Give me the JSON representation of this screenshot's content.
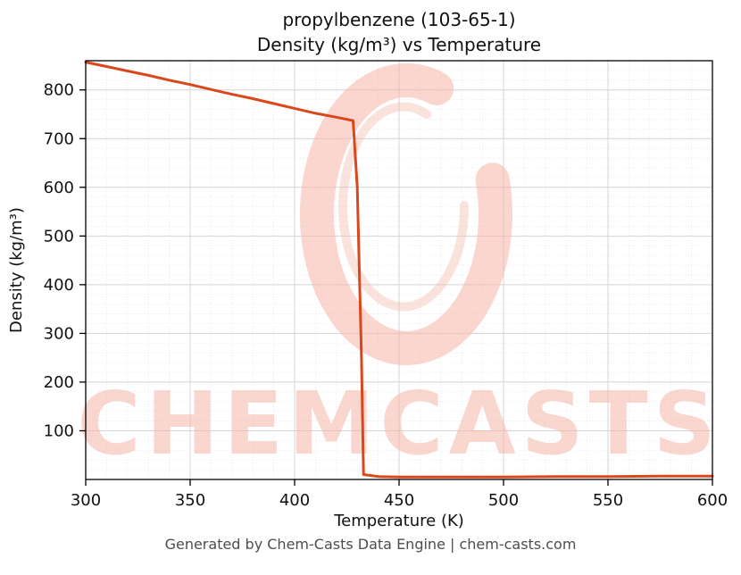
{
  "page": {
    "title_line1": "propylbenzene (103-65-1)",
    "title_line2": "Density (kg/m³) vs Temperature",
    "footer": "Generated by Chem-Casts Data Engine | chem-casts.com"
  },
  "watermark": {
    "text": "CHEMCASTS",
    "color": "#f5b5a7",
    "opacity": 0.55
  },
  "chart_data": {
    "type": "line",
    "title": "propylbenzene (103-65-1) — Density (kg/m³) vs Temperature",
    "xlabel": "Temperature (K)",
    "ylabel": "Density (kg/m³)",
    "xlim": [
      300,
      600
    ],
    "ylim": [
      0,
      860
    ],
    "xticks": [
      300,
      350,
      400,
      450,
      500,
      550,
      600
    ],
    "yticks": [
      100,
      200,
      300,
      400,
      500,
      600,
      700,
      800
    ],
    "grid": true,
    "legend": false,
    "line_color": "#d9481c",
    "series": [
      {
        "name": "Density",
        "points": [
          [
            300,
            857
          ],
          [
            310,
            848
          ],
          [
            320,
            839
          ],
          [
            330,
            830
          ],
          [
            340,
            820
          ],
          [
            350,
            811
          ],
          [
            360,
            801
          ],
          [
            370,
            791
          ],
          [
            380,
            782
          ],
          [
            390,
            772
          ],
          [
            400,
            762
          ],
          [
            410,
            752
          ],
          [
            420,
            744
          ],
          [
            428,
            737
          ],
          [
            430,
            600
          ],
          [
            432,
            250
          ],
          [
            433,
            10
          ],
          [
            440,
            6
          ],
          [
            450,
            5
          ],
          [
            475,
            5
          ],
          [
            500,
            5
          ],
          [
            525,
            6
          ],
          [
            550,
            6
          ],
          [
            575,
            7
          ],
          [
            600,
            7
          ]
        ]
      }
    ]
  }
}
